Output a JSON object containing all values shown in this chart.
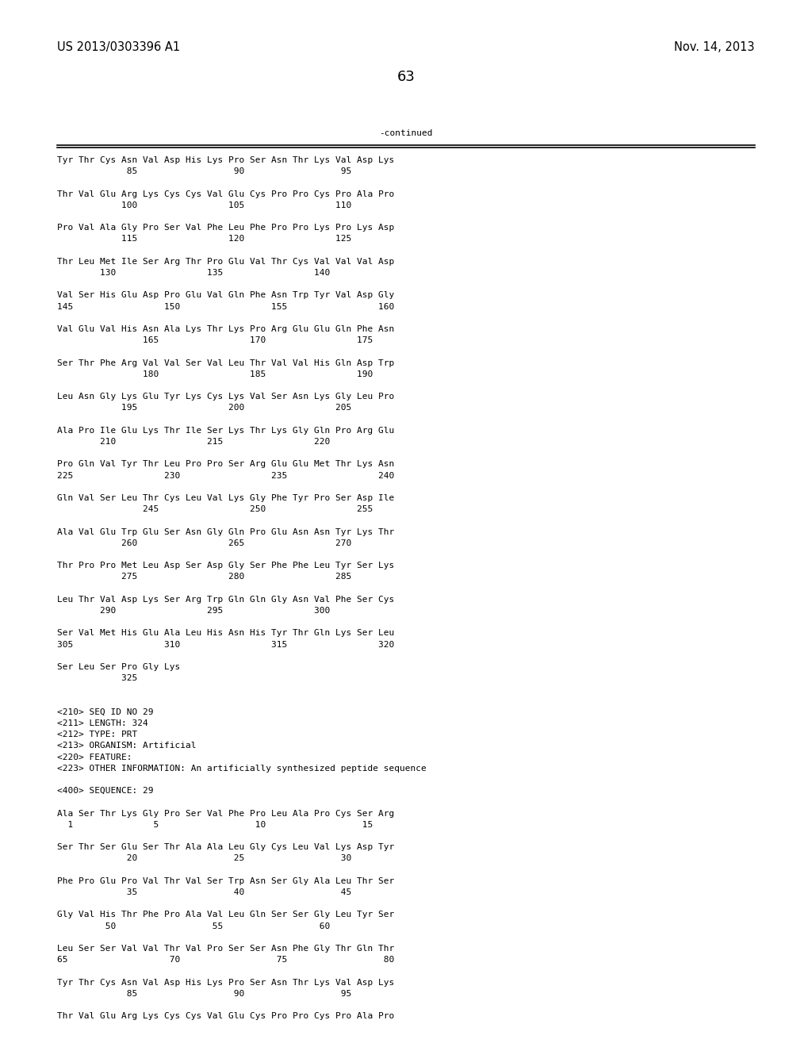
{
  "header_left": "US 2013/0303396 A1",
  "header_right": "Nov. 14, 2013",
  "page_number": "63",
  "continued_label": "-continued",
  "background_color": "#ffffff",
  "text_color": "#000000",
  "font_size": 8.0,
  "mono_font": "DejaVu Sans Mono",
  "header_font_size": 10.5,
  "page_num_font_size": 13,
  "content_lines": [
    "Tyr Thr Cys Asn Val Asp His Lys Pro Ser Asn Thr Lys Val Asp Lys",
    "             85                  90                  95",
    "",
    "Thr Val Glu Arg Lys Cys Cys Val Glu Cys Pro Pro Cys Pro Ala Pro",
    "            100                 105                 110",
    "",
    "Pro Val Ala Gly Pro Ser Val Phe Leu Phe Pro Pro Lys Pro Lys Asp",
    "            115                 120                 125",
    "",
    "Thr Leu Met Ile Ser Arg Thr Pro Glu Val Thr Cys Val Val Val Asp",
    "        130                 135                 140",
    "",
    "Val Ser His Glu Asp Pro Glu Val Gln Phe Asn Trp Tyr Val Asp Gly",
    "145                 150                 155                 160",
    "",
    "Val Glu Val His Asn Ala Lys Thr Lys Pro Arg Glu Glu Gln Phe Asn",
    "                165                 170                 175",
    "",
    "Ser Thr Phe Arg Val Val Ser Val Leu Thr Val Val His Gln Asp Trp",
    "                180                 185                 190",
    "",
    "Leu Asn Gly Lys Glu Tyr Lys Cys Lys Val Ser Asn Lys Gly Leu Pro",
    "            195                 200                 205",
    "",
    "Ala Pro Ile Glu Lys Thr Ile Ser Lys Thr Lys Gly Gln Pro Arg Glu",
    "        210                 215                 220",
    "",
    "Pro Gln Val Tyr Thr Leu Pro Pro Ser Arg Glu Glu Met Thr Lys Asn",
    "225                 230                 235                 240",
    "",
    "Gln Val Ser Leu Thr Cys Leu Val Lys Gly Phe Tyr Pro Ser Asp Ile",
    "                245                 250                 255",
    "",
    "Ala Val Glu Trp Glu Ser Asn Gly Gln Pro Glu Asn Asn Tyr Lys Thr",
    "            260                 265                 270",
    "",
    "Thr Pro Pro Met Leu Asp Ser Asp Gly Ser Phe Phe Leu Tyr Ser Lys",
    "            275                 280                 285",
    "",
    "Leu Thr Val Asp Lys Ser Arg Trp Gln Gln Gly Asn Val Phe Ser Cys",
    "        290                 295                 300",
    "",
    "Ser Val Met His Glu Ala Leu His Asn His Tyr Thr Gln Lys Ser Leu",
    "305                 310                 315                 320",
    "",
    "Ser Leu Ser Pro Gly Lys",
    "            325",
    "",
    "",
    "<210> SEQ ID NO 29",
    "<211> LENGTH: 324",
    "<212> TYPE: PRT",
    "<213> ORGANISM: Artificial",
    "<220> FEATURE:",
    "<223> OTHER INFORMATION: An artificially synthesized peptide sequence",
    "",
    "<400> SEQUENCE: 29",
    "",
    "Ala Ser Thr Lys Gly Pro Ser Val Phe Pro Leu Ala Pro Cys Ser Arg",
    "  1               5                  10                  15",
    "",
    "Ser Thr Ser Glu Ser Thr Ala Ala Leu Gly Cys Leu Val Lys Asp Tyr",
    "             20                  25                  30",
    "",
    "Phe Pro Glu Pro Val Thr Val Ser Trp Asn Ser Gly Ala Leu Thr Ser",
    "             35                  40                  45",
    "",
    "Gly Val His Thr Phe Pro Ala Val Leu Gln Ser Ser Gly Leu Tyr Ser",
    "         50                  55                  60",
    "",
    "Leu Ser Ser Val Val Thr Val Pro Ser Ser Asn Phe Gly Thr Gln Thr",
    "65                   70                  75                  80",
    "",
    "Tyr Thr Cys Asn Val Asp His Lys Pro Ser Asn Thr Lys Val Asp Lys",
    "             85                  90                  95",
    "",
    "Thr Val Glu Arg Lys Cys Cys Val Glu Cys Pro Pro Cys Pro Ala Pro"
  ]
}
